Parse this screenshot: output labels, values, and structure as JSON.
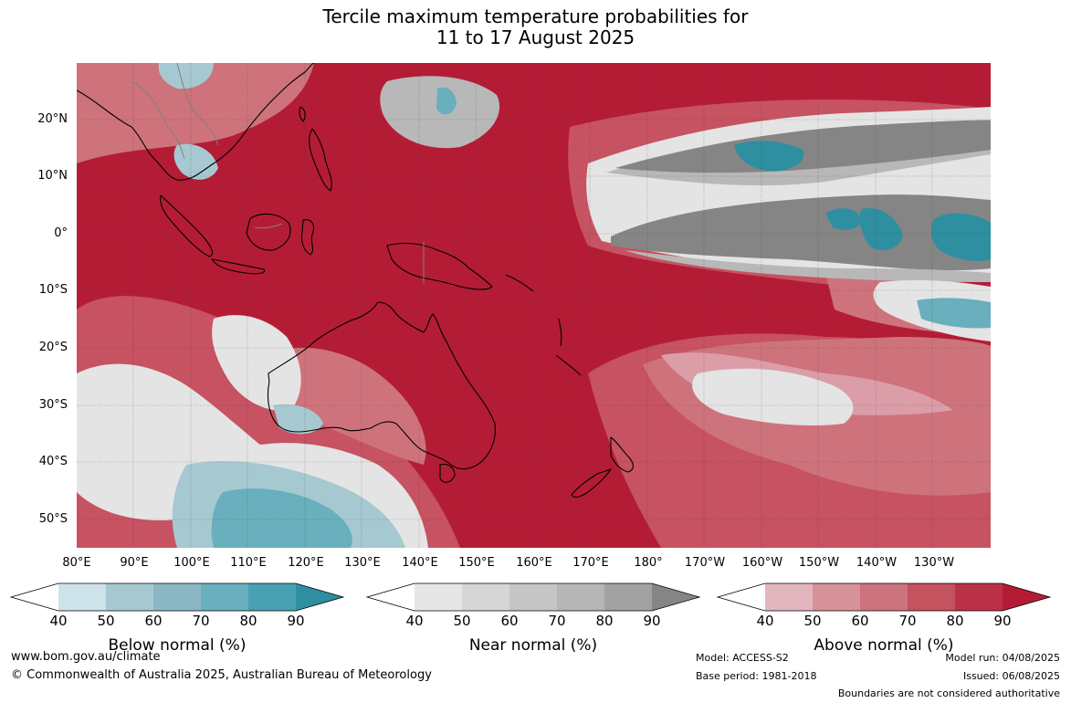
{
  "title": {
    "line1": "Tercile maximum temperature probabilities for",
    "line2": "11 to 17 August 2025"
  },
  "map": {
    "lat_labels": [
      "20°N",
      "10°N",
      "0°",
      "10°S",
      "20°S",
      "30°S",
      "40°S",
      "50°S"
    ],
    "lon_labels": [
      "80°E",
      "90°E",
      "100°E",
      "110°E",
      "120°E",
      "130°E",
      "140°E",
      "150°E",
      "160°E",
      "170°E",
      "180°",
      "170°W",
      "160°W",
      "150°W",
      "140°W",
      "130°W"
    ],
    "colors": {
      "above_90": "#b41c36",
      "above_80": "#c13a50",
      "above_70": "#c85565",
      "above_60": "#d07880",
      "above_50": "#dea6b0",
      "near_40": "#e4e4e4",
      "near_70": "#b8b8b8",
      "near_90": "#858585",
      "below_50": "#a6c9d1",
      "below_70": "#69afbd",
      "below_90": "#2e8fa1",
      "coastline": "#000000",
      "borders": "#808080"
    }
  },
  "colorbars": {
    "below": {
      "title": "Below normal (%)",
      "ticks": [
        "40",
        "50",
        "60",
        "70",
        "80",
        "90"
      ],
      "colors": [
        "#ffffff",
        "#cde3e9",
        "#a6c9d1",
        "#8bb8c4",
        "#69afbd",
        "#48a1b2",
        "#2e8fa1"
      ]
    },
    "near": {
      "title": "Near normal (%)",
      "ticks": [
        "40",
        "50",
        "60",
        "70",
        "80",
        "90"
      ],
      "colors": [
        "#ffffff",
        "#e6e6e6",
        "#d6d6d6",
        "#c6c6c6",
        "#b6b6b6",
        "#a2a2a2",
        "#858585"
      ]
    },
    "above": {
      "title": "Above normal (%)",
      "ticks": [
        "40",
        "50",
        "60",
        "70",
        "80",
        "90"
      ],
      "colors": [
        "#ffffff",
        "#e2b6bf",
        "#d79199",
        "#cd737d",
        "#c4525f",
        "#bb3148",
        "#b41c36"
      ]
    }
  },
  "footer": {
    "website": "www.bom.gov.au/climate",
    "copyright": "© Commonwealth of Australia 2025, Australian Bureau of Meteorology",
    "model": "Model: ACCESS-S2",
    "base_period": "Base period: 1981-2018",
    "model_run": "Model run: 04/08/2025",
    "issued": "Issued: 06/08/2025",
    "disclaimer": "Boundaries are not considered authoritative"
  }
}
